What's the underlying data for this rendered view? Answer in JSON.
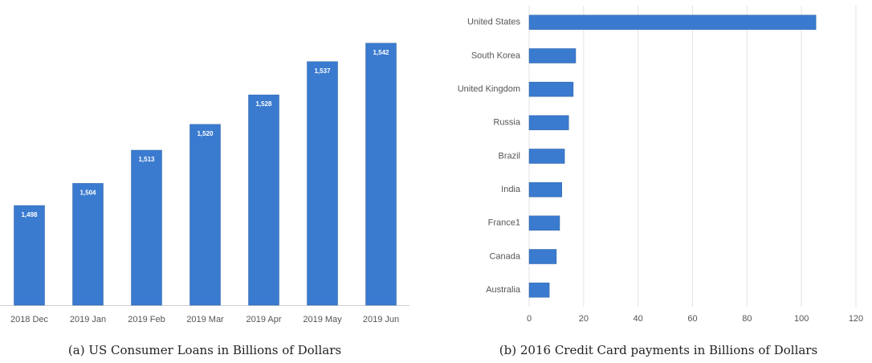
{
  "chart_data": [
    {
      "type": "bar",
      "caption": "(a) US Consumer Loans in Billions of Dollars",
      "categories": [
        "2018 Dec",
        "2019 Jan",
        "2019 Feb",
        "2019 Mar",
        "2019 Apr",
        "2019 May",
        "2019 Jun"
      ],
      "values": [
        1498,
        1504,
        1513,
        1520,
        1528,
        1537,
        1542
      ],
      "value_labels": [
        "1,498",
        "1,504",
        "1,513",
        "1,520",
        "1,528",
        "1,537",
        "1,542"
      ],
      "color": "#3a7bd0",
      "ylim": [
        1471,
        1545
      ]
    },
    {
      "type": "barh",
      "caption": "(b) 2016 Credit Card payments in Billions of Dollars",
      "categories": [
        "United States",
        "South Korea",
        "United Kingdom",
        "Russia",
        "Brazil",
        "India",
        "France1",
        "Canada",
        "Australia"
      ],
      "values": [
        105.3,
        17.1,
        16.2,
        14.5,
        13,
        12,
        11.2,
        10,
        7.4
      ],
      "color": "#3a7bd0",
      "xlim": [
        0,
        120
      ],
      "xticks": [
        0,
        20,
        40,
        60,
        80,
        100,
        120
      ],
      "grid": true
    }
  ]
}
